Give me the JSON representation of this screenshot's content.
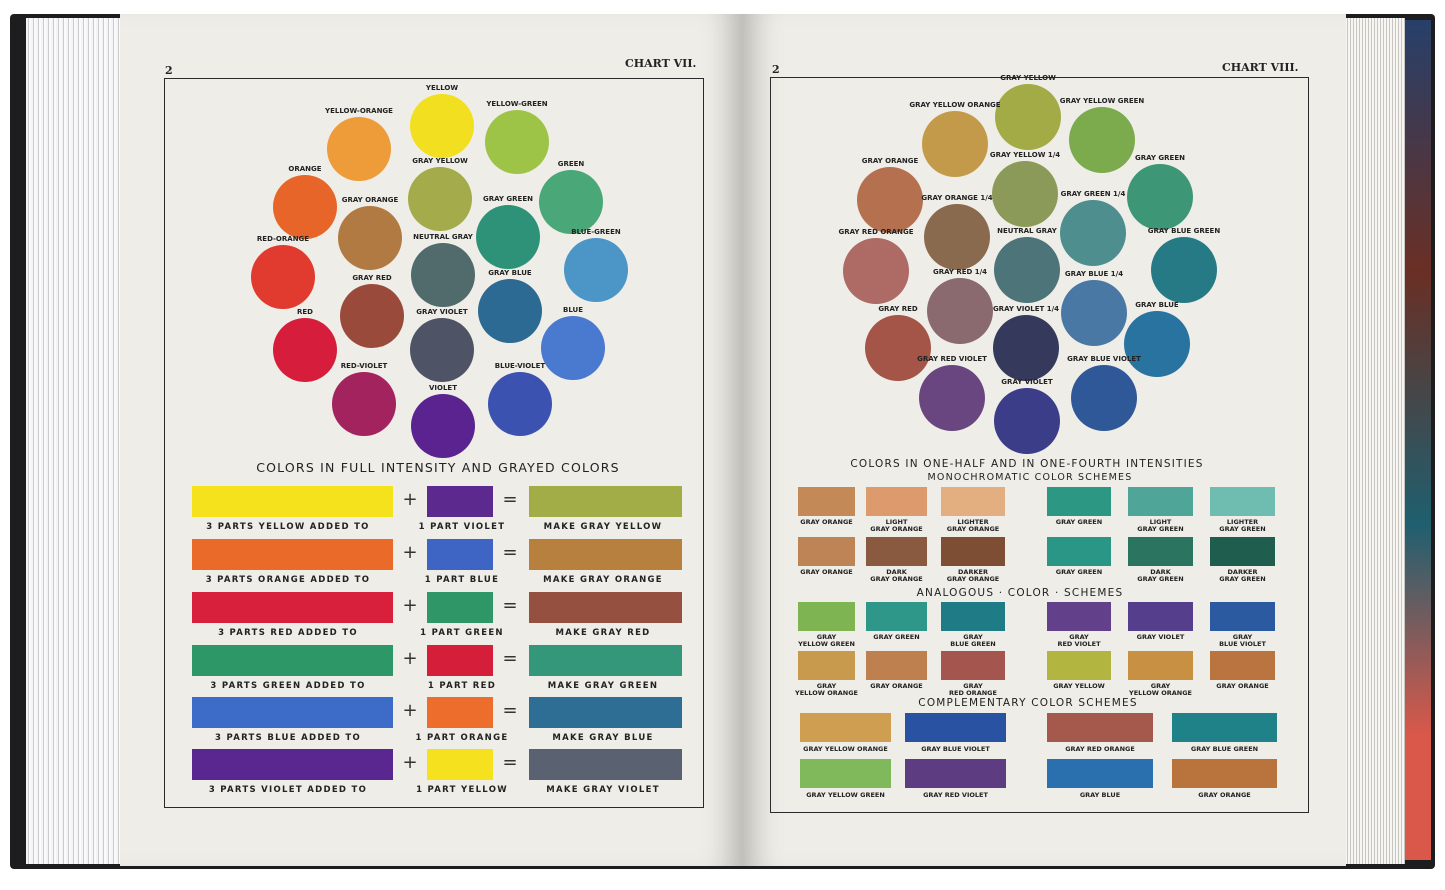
{
  "left_page": {
    "page_number": "2",
    "chart_title": "CHART VII.",
    "heading": "COLORS IN FULL INTENSITY AND GRAYED COLORS",
    "circles": [
      {
        "label": "YELLOW",
        "color": "#f2e020"
      },
      {
        "label": "YELLOW-ORANGE",
        "color": "#ee9c3a"
      },
      {
        "label": "YELLOW-GREEN",
        "color": "#9ec447"
      },
      {
        "label": "ORANGE",
        "color": "#e8652a"
      },
      {
        "label": "GRAY YELLOW",
        "color": "#a4ab4a"
      },
      {
        "label": "GREEN",
        "color": "#4aa778"
      },
      {
        "label": "GRAY ORANGE",
        "color": "#b07a42"
      },
      {
        "label": "GRAY GREEN",
        "color": "#2e9278"
      },
      {
        "label": "RED-ORANGE",
        "color": "#e13a2e"
      },
      {
        "label": "NEUTRAL GRAY",
        "color": "#516a6c"
      },
      {
        "label": "BLUE-GREEN",
        "color": "#4c95c7"
      },
      {
        "label": "GRAY RED",
        "color": "#9a4a3a"
      },
      {
        "label": "GRAY BLUE",
        "color": "#2c6a93"
      },
      {
        "label": "RED",
        "color": "#d61d3b"
      },
      {
        "label": "GRAY VIOLET",
        "color": "#4e5366"
      },
      {
        "label": "BLUE",
        "color": "#4a7ad0"
      },
      {
        "label": "RED-VIOLET",
        "color": "#a2235e"
      },
      {
        "label": "VIOLET",
        "color": "#5a238f"
      },
      {
        "label": "BLUE-VIOLET",
        "color": "#3c52b0"
      }
    ],
    "mix_rows": [
      {
        "base_label": "3 PARTS YELLOW ADDED TO",
        "base_color": "#f5e11c",
        "add_label": "1 PART VIOLET",
        "add_color": "#5c2a8e",
        "result_label": "MAKE GRAY YELLOW",
        "result_color": "#a3ad47"
      },
      {
        "base_label": "3 PARTS ORANGE ADDED TO",
        "base_color": "#ea6a2a",
        "add_label": "1 PART BLUE",
        "add_color": "#3f65c4",
        "result_label": "MAKE GRAY ORANGE",
        "result_color": "#b7803f"
      },
      {
        "base_label": "3 PARTS RED ADDED TO",
        "base_color": "#d8203c",
        "add_label": "1 PART GREEN",
        "add_color": "#2f9668",
        "result_label": "MAKE GRAY RED",
        "result_color": "#95503f"
      },
      {
        "base_label": "3 PARTS GREEN ADDED TO",
        "base_color": "#2e9768",
        "add_label": "1 PART RED",
        "add_color": "#d51e3a",
        "result_label": "MAKE GRAY GREEN",
        "result_color": "#35977a"
      },
      {
        "base_label": "3 PARTS BLUE ADDED TO",
        "base_color": "#3d6bc8",
        "add_label": "1 PART ORANGE",
        "add_color": "#ec6d2c",
        "result_label": "MAKE GRAY BLUE",
        "result_color": "#2e6e95"
      },
      {
        "base_label": "3 PARTS VIOLET ADDED TO",
        "base_color": "#5a2790",
        "add_label": "1 PART YELLOW",
        "add_color": "#f5e11e",
        "result_label": "MAKE GRAY VIOLET",
        "result_color": "#5a6272"
      }
    ],
    "plus": "+",
    "equals": "="
  },
  "right_page": {
    "page_number": "2",
    "chart_title": "CHART VIII.",
    "heading": "COLORS IN ONE-HALF AND IN ONE-FOURTH INTENSITIES",
    "circles": [
      {
        "label": "GRAY YELLOW",
        "color": "#a2ab45"
      },
      {
        "label": "GRAY YELLOW ORANGE",
        "color": "#c39a4a"
      },
      {
        "label": "GRAY YELLOW GREEN",
        "color": "#7bab4c"
      },
      {
        "label": "GRAY ORANGE",
        "color": "#b4704f"
      },
      {
        "label": "GRAY YELLOW 1/4",
        "color": "#8b9a58"
      },
      {
        "label": "GRAY GREEN",
        "color": "#3d9676"
      },
      {
        "label": "GRAY ORANGE 1/4",
        "color": "#8a6a4e"
      },
      {
        "label": "GRAY GREEN 1/4",
        "color": "#4e8e8e"
      },
      {
        "label": "GRAY RED ORANGE",
        "color": "#ae6a64"
      },
      {
        "label": "NEUTRAL GRAY",
        "color": "#4d7478"
      },
      {
        "label": "GRAY BLUE GREEN",
        "color": "#267a86"
      },
      {
        "label": "GRAY RED 1/4",
        "color": "#8a6a6e"
      },
      {
        "label": "GRAY BLUE 1/4",
        "color": "#4a78a4"
      },
      {
        "label": "GRAY RED",
        "color": "#a45548"
      },
      {
        "label": "GRAY VIOLET 1/4",
        "color": "#353a5c"
      },
      {
        "label": "GRAY BLUE",
        "color": "#2873a0"
      },
      {
        "label": "GRAY RED VIOLET",
        "color": "#6a4680"
      },
      {
        "label": "GRAY VIOLET",
        "color": "#3b3d88"
      },
      {
        "label": "GRAY BLUE VIOLET",
        "color": "#2f5898"
      }
    ],
    "monochromatic": {
      "title": "MONOCHROMATIC COLOR SCHEMES",
      "swatches": [
        {
          "label": "GRAY ORANGE",
          "color": "#c38a58"
        },
        {
          "label": "LIGHT\nGRAY ORANGE",
          "color": "#dd9a6c"
        },
        {
          "label": "LIGHTER\nGRAY ORANGE",
          "color": "#e3ae80"
        },
        {
          "label": "GRAY GREEN",
          "color": "#2c9884"
        },
        {
          "label": "LIGHT\nGRAY GREEN",
          "color": "#4fa698"
        },
        {
          "label": "LIGHTER\nGRAY GREEN",
          "color": "#6fbcb0"
        },
        {
          "label": "GRAY ORANGE",
          "color": "#bf8456"
        },
        {
          "label": "DARK\nGRAY ORANGE",
          "color": "#8a5a40"
        },
        {
          "label": "DARKER\nGRAY ORANGE",
          "color": "#7e4e34"
        },
        {
          "label": "GRAY GREEN",
          "color": "#2a9686"
        },
        {
          "label": "DARK\nGRAY GREEN",
          "color": "#2a7460"
        },
        {
          "label": "DARKER\nGRAY GREEN",
          "color": "#1f5e4e"
        }
      ]
    },
    "analogous": {
      "title": "ANALOGOUS · COLOR · SCHEMES",
      "swatches": [
        {
          "label": "GRAY\nYELLOW GREEN",
          "color": "#7eb552"
        },
        {
          "label": "GRAY GREEN",
          "color": "#2f978a"
        },
        {
          "label": "GRAY\nBLUE GREEN",
          "color": "#1f7c86"
        },
        {
          "label": "GRAY\nRED VIOLET",
          "color": "#62418a"
        },
        {
          "label": "GRAY VIOLET",
          "color": "#553f8c"
        },
        {
          "label": "GRAY\nBLUE VIOLET",
          "color": "#2c5aa0"
        },
        {
          "label": "GRAY\nYELLOW ORANGE",
          "color": "#c89a4e"
        },
        {
          "label": "GRAY ORANGE",
          "color": "#bf8050"
        },
        {
          "label": "GRAY\nRED ORANGE",
          "color": "#a4554e"
        },
        {
          "label": "GRAY YELLOW",
          "color": "#b2b640"
        },
        {
          "label": "GRAY\nYELLOW ORANGE",
          "color": "#c89042"
        },
        {
          "label": "GRAY ORANGE",
          "color": "#b97440"
        }
      ]
    },
    "complementary": {
      "title": "COMPLEMENTARY COLOR SCHEMES",
      "swatches": [
        {
          "label": "GRAY YELLOW ORANGE",
          "color": "#cf9e50"
        },
        {
          "label": "GRAY BLUE VIOLET",
          "color": "#2a52a2"
        },
        {
          "label": "GRAY RED ORANGE",
          "color": "#a5584c"
        },
        {
          "label": "GRAY BLUE GREEN",
          "color": "#1f8288"
        },
        {
          "label": "GRAY YELLOW GREEN",
          "color": "#80b85c"
        },
        {
          "label": "GRAY RED VIOLET",
          "color": "#5e3c82"
        },
        {
          "label": "GRAY BLUE",
          "color": "#2a70ae"
        },
        {
          "label": "GRAY ORANGE",
          "color": "#b8743c"
        }
      ]
    }
  }
}
